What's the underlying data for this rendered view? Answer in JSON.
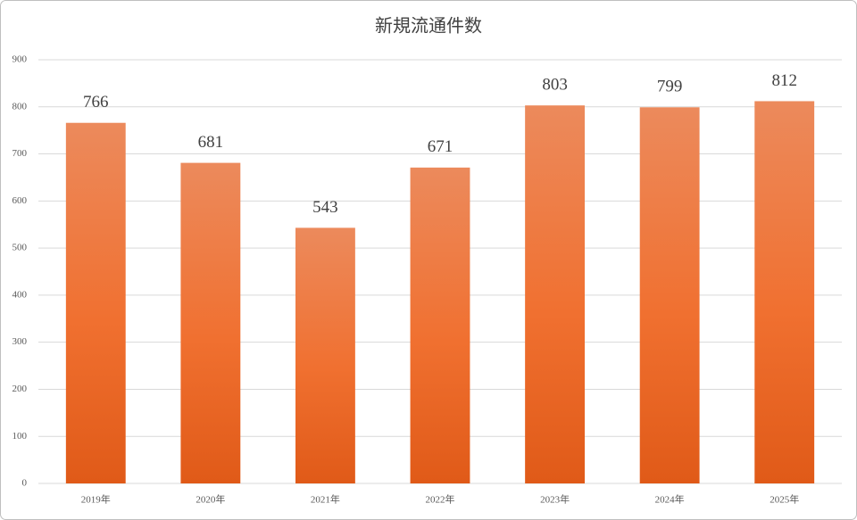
{
  "chart_data": {
    "type": "bar",
    "title": "新規流通件数",
    "categories": [
      "2019年",
      "2020年",
      "2021年",
      "2022年",
      "2023年",
      "2024年",
      "2025年"
    ],
    "values": [
      766,
      681,
      543,
      671,
      803,
      799,
      812
    ],
    "color": "#f07030",
    "ylim": [
      0,
      900
    ],
    "yticks": [
      0,
      100,
      200,
      300,
      400,
      500,
      600,
      700,
      800,
      900
    ],
    "grid": true
  }
}
